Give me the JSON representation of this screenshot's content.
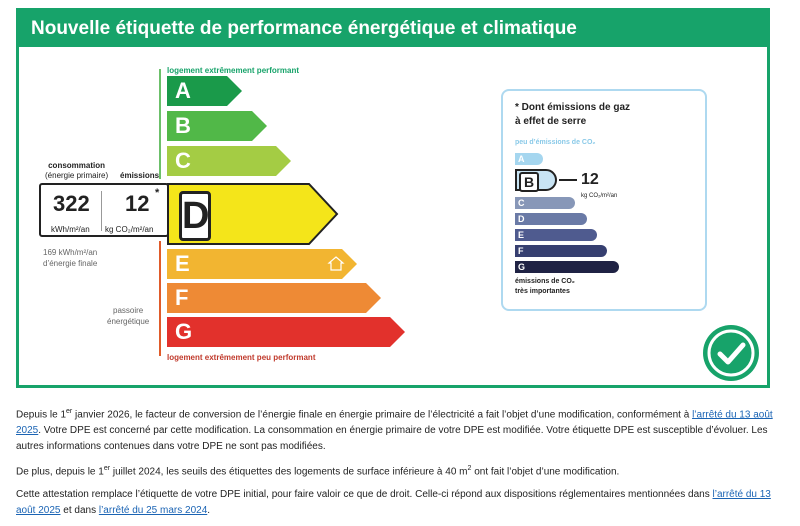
{
  "card": {
    "title": "Nouvelle étiquette de performance énergétique et climatique"
  },
  "dpe": {
    "top_label": "logement extrêmement performant",
    "bottom_label": "logement extrêmement peu performant",
    "classes": [
      {
        "letter": "A",
        "color": "#1a9a4a"
      },
      {
        "letter": "B",
        "color": "#51b848"
      },
      {
        "letter": "C",
        "color": "#a4cc44"
      },
      {
        "letter": "D",
        "color": "#f4e51a"
      },
      {
        "letter": "E",
        "color": "#f2b531"
      },
      {
        "letter": "F",
        "color": "#ee8a35"
      },
      {
        "letter": "G",
        "color": "#e2312c"
      }
    ],
    "active_class": "D",
    "consommation_label": "consommation",
    "consommation_sub": "(énergie primaire)",
    "emissions_label": "émissions",
    "consommation_value": "322",
    "consommation_unit": "kWh/m²/an",
    "emissions_value": "12",
    "emissions_unit": "kg CO₂/m²/an",
    "asterisk": "*",
    "final_energy_line1": "169 kWh/m²/an",
    "final_energy_line2": "d’énergie finale",
    "passoire_line1": "passoire",
    "passoire_line2": "énergétique"
  },
  "ges": {
    "title_line1": "* Dont émissions de gaz",
    "title_line2": "à effet de serre",
    "top_label": "peu d’émissions de CO₂",
    "bottom_line1": "émissions de CO₂",
    "bottom_line2": "très importantes",
    "classes": [
      {
        "letter": "A",
        "color": "#a5d6ef",
        "fill": 0.2
      },
      {
        "letter": "B",
        "color": "#c8e4f4",
        "fill": 0.3
      },
      {
        "letter": "C",
        "color": "#8797b8",
        "fill": 0.45
      },
      {
        "letter": "D",
        "color": "#6a7aa6",
        "fill": 0.55
      },
      {
        "letter": "E",
        "color": "#4f5b8f",
        "fill": 0.65
      },
      {
        "letter": "F",
        "color": "#363f70",
        "fill": 0.75
      },
      {
        "letter": "G",
        "color": "#1f2244",
        "fill": 0.85
      }
    ],
    "active_class": "B",
    "value": "12",
    "unit": "kg CO₂/m²/an"
  },
  "notice": {
    "p1_a": "Depuis le 1",
    "p1_sup": "er",
    "p1_b": " janvier 2026, le facteur de conversion de l’énergie finale en énergie primaire de l’électricité a fait l’objet d’une modification, conformément à ",
    "p1_link": "l’arrêté du 13 août 2025",
    "p1_c": ". Votre DPE est concerné par cette modification. La consommation en énergie primaire de votre DPE est modifiée. Votre étiquette DPE est susceptible d’évoluer. Les autres informations contenues dans votre DPE ne sont pas modifiées.",
    "p2_a": "De plus, depuis le 1",
    "p2_sup": "er",
    "p2_b": " juillet 2024, les seuils des étiquettes des logements de surface inférieure à 40 m",
    "p2_sup2": "2",
    "p2_c": " ont fait l’objet d’une modification.",
    "p3_a": "Cette attestation remplace l’étiquette de votre DPE initial, pour faire valoir ce que de droit. Celle-ci répond aux dispositions réglementaires mentionnées dans ",
    "p3_link1": "l’arrêté du 13 août 2025",
    "p3_b": " et dans ",
    "p3_link2": "l’arrêté du 25 mars 2024",
    "p3_c": "."
  },
  "icons": {
    "check": "check-circle-icon",
    "house": "house-icon"
  }
}
